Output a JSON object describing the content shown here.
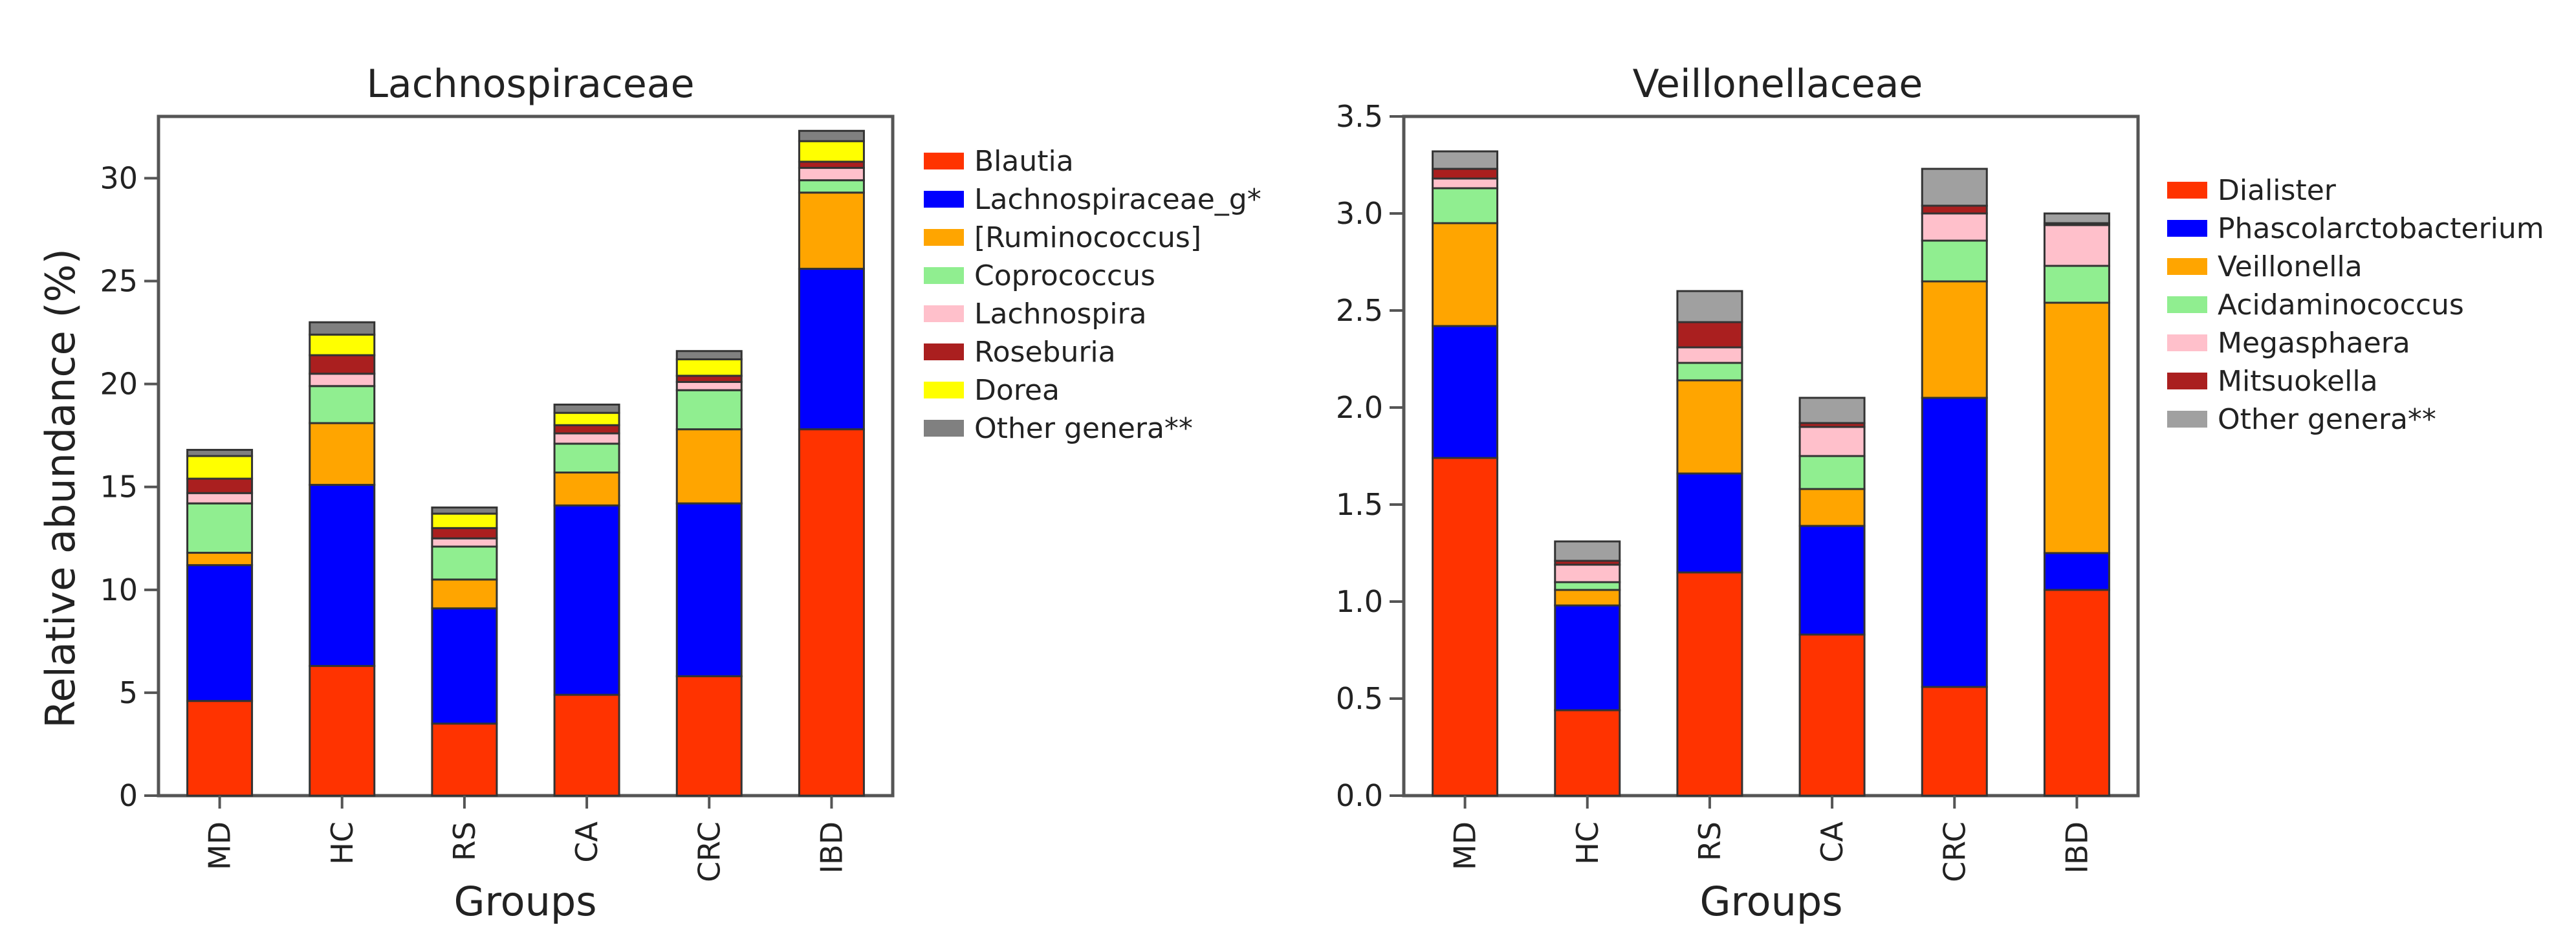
{
  "figure": {
    "ylabel": "Relative abundance (%)",
    "xlabel": "Groups"
  },
  "chart_data": [
    {
      "type": "bar",
      "stacked": true,
      "title": "Lachnospiraceae",
      "xlabel": "Groups",
      "ylabel": "Relative abundance (%)",
      "ylim": [
        0,
        33
      ],
      "yticks": [
        0,
        5,
        10,
        15,
        20,
        25,
        30
      ],
      "ytick_labels": [
        "0",
        "5",
        "10",
        "15",
        "20",
        "25",
        "30"
      ],
      "categories": [
        "MD",
        "HC",
        "RS",
        "CA",
        "CRC",
        "IBD"
      ],
      "grid": false,
      "legend_position": "right",
      "series": [
        {
          "name": "Blautia",
          "color": "#ff3300",
          "values": [
            4.6,
            6.3,
            3.5,
            4.9,
            5.8,
            17.8
          ]
        },
        {
          "name": "Lachnospiraceae_g*",
          "color": "#0000ff",
          "values": [
            6.6,
            8.8,
            5.6,
            9.2,
            8.4,
            7.8
          ]
        },
        {
          "name": "[Ruminococcus]",
          "color": "#ffa500",
          "values": [
            0.6,
            3.0,
            1.4,
            1.6,
            3.6,
            3.7
          ]
        },
        {
          "name": "Coprococcus",
          "color": "#90ee90",
          "values": [
            2.4,
            1.8,
            1.6,
            1.4,
            1.9,
            0.6
          ]
        },
        {
          "name": "Lachnospira",
          "color": "#ffc0cb",
          "values": [
            0.5,
            0.6,
            0.4,
            0.5,
            0.4,
            0.6
          ]
        },
        {
          "name": "Roseburia",
          "color": "#aa1f1f",
          "values": [
            0.7,
            0.9,
            0.5,
            0.4,
            0.3,
            0.3
          ]
        },
        {
          "name": "Dorea",
          "color": "#ffff00",
          "values": [
            1.1,
            1.0,
            0.7,
            0.6,
            0.8,
            1.0
          ]
        },
        {
          "name": "Other genera**",
          "color": "#808080",
          "values": [
            0.3,
            0.6,
            0.3,
            0.4,
            0.4,
            0.5
          ]
        }
      ]
    },
    {
      "type": "bar",
      "stacked": true,
      "title": "Veillonellaceae",
      "xlabel": "Groups",
      "ylabel": "",
      "ylim": [
        0,
        3.5
      ],
      "yticks": [
        0,
        0.5,
        1.0,
        1.5,
        2.0,
        2.5,
        3.0,
        3.5
      ],
      "ytick_labels": [
        "0.0",
        "0.5",
        "1.0",
        "1.5",
        "2.0",
        "2.5",
        "3.0",
        "3.5"
      ],
      "categories": [
        "MD",
        "HC",
        "RS",
        "CA",
        "CRC",
        "IBD"
      ],
      "grid": false,
      "legend_position": "right",
      "series": [
        {
          "name": "Dialister",
          "color": "#ff3300",
          "values": [
            1.74,
            0.44,
            1.15,
            0.83,
            0.56,
            1.06
          ]
        },
        {
          "name": "Phascolarctobacterium",
          "color": "#0000ff",
          "values": [
            0.68,
            0.54,
            0.51,
            0.56,
            1.49,
            0.19
          ]
        },
        {
          "name": "Veillonella",
          "color": "#ffa500",
          "values": [
            0.53,
            0.08,
            0.48,
            0.19,
            0.6,
            1.29
          ]
        },
        {
          "name": "Acidaminococcus",
          "color": "#90ee90",
          "values": [
            0.18,
            0.04,
            0.09,
            0.17,
            0.21,
            0.19
          ]
        },
        {
          "name": "Megasphaera",
          "color": "#ffc0cb",
          "values": [
            0.05,
            0.09,
            0.08,
            0.15,
            0.14,
            0.21
          ]
        },
        {
          "name": "Mitsuokella",
          "color": "#aa1f1f",
          "values": [
            0.05,
            0.02,
            0.13,
            0.02,
            0.04,
            0.01
          ]
        },
        {
          "name": "Other genera**",
          "color": "#a0a0a0",
          "values": [
            0.09,
            0.1,
            0.16,
            0.13,
            0.19,
            0.05
          ]
        }
      ]
    }
  ]
}
